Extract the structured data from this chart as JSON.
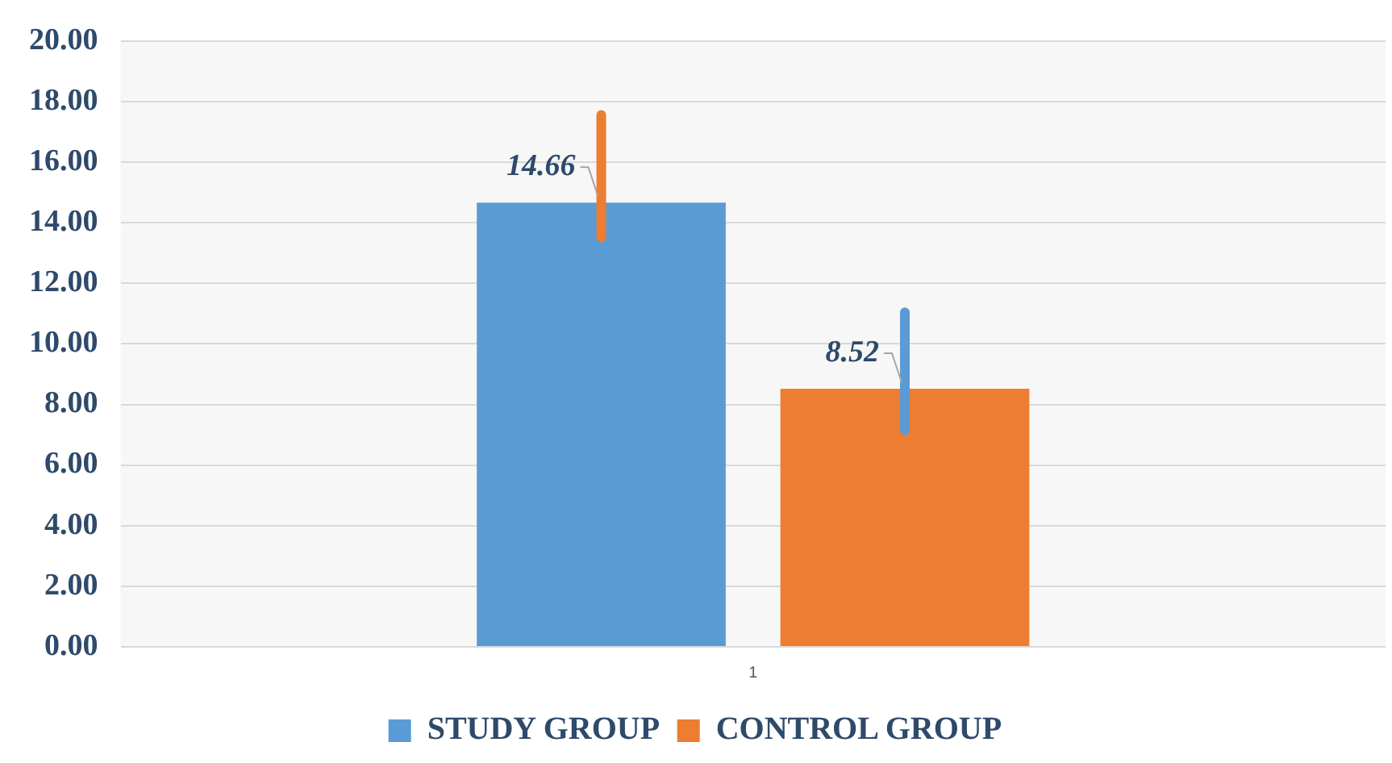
{
  "chart_data": {
    "type": "bar",
    "categories": [
      "1"
    ],
    "series": [
      {
        "name": "STUDY GROUP",
        "color": "#5b9bd5",
        "values": [
          14.66
        ],
        "errors": [
          [
            13.52,
            17.56
          ]
        ],
        "value_labels": [
          "14.66"
        ]
      },
      {
        "name": "CONTROL GROUP",
        "color": "#ed7d31",
        "values": [
          8.52
        ],
        "errors": [
          [
            7.15,
            11.04
          ]
        ],
        "value_labels": [
          "8.52"
        ]
      }
    ],
    "ylim": [
      0,
      20
    ],
    "yticks": [
      {
        "value": 0,
        "label": "0.00"
      },
      {
        "value": 2,
        "label": "2.00"
      },
      {
        "value": 4,
        "label": "4.00"
      },
      {
        "value": 6,
        "label": "6.00"
      },
      {
        "value": 8,
        "label": "8.00"
      },
      {
        "value": 10,
        "label": "10.00"
      },
      {
        "value": 12,
        "label": "12.00"
      },
      {
        "value": 14,
        "label": "14.00"
      },
      {
        "value": 16,
        "label": "16.00"
      },
      {
        "value": 18,
        "label": "18.00"
      },
      {
        "value": 20,
        "label": "20.00"
      }
    ],
    "grid": "y",
    "legend": "bottom"
  }
}
